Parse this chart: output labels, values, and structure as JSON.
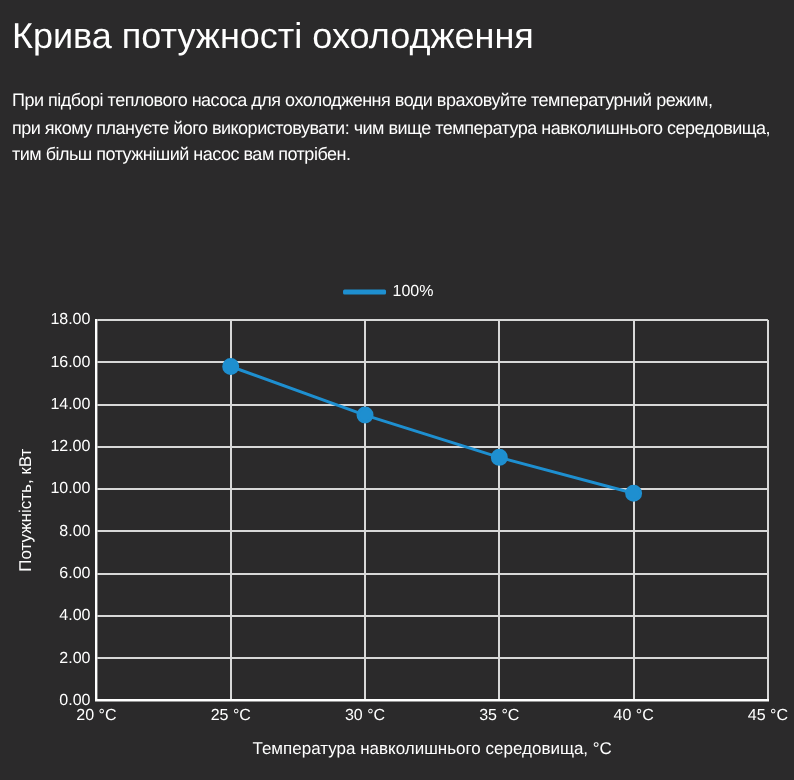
{
  "chart_data": {
    "type": "line",
    "title": "Крива потужності охолодження",
    "subtitle": "При підборі теплового насоса для охолодження води враховуйте температурний режим,\nпри якому плануєте його використовувати: чим вище температура навколишнього середовища,\nтим більш потужніший насос вам потрібен.",
    "xlabel": "Температура навколишнього середовища, °C",
    "ylabel": "Потужність, кВт",
    "x": [
      25,
      30,
      35,
      40
    ],
    "series": [
      {
        "name": "100%",
        "color": "#1e8fd0",
        "values": [
          15.8,
          13.5,
          11.5,
          9.8
        ]
      }
    ],
    "xlim": [
      20,
      45
    ],
    "xticks": [
      {
        "value": 20,
        "label": "20 °C"
      },
      {
        "value": 25,
        "label": "25 °C"
      },
      {
        "value": 30,
        "label": "30 °C"
      },
      {
        "value": 35,
        "label": "35 °C"
      },
      {
        "value": 40,
        "label": "40 °C"
      },
      {
        "value": 45,
        "label": "45 °C"
      }
    ],
    "ylim": [
      0,
      18
    ],
    "yticks": [
      {
        "value": 0,
        "label": "0.00"
      },
      {
        "value": 2,
        "label": "2.00"
      },
      {
        "value": 4,
        "label": "4.00"
      },
      {
        "value": 6,
        "label": "6.00"
      },
      {
        "value": 8,
        "label": "8.00"
      },
      {
        "value": 10,
        "label": "10.00"
      },
      {
        "value": 12,
        "label": "12.00"
      },
      {
        "value": 14,
        "label": "14.00"
      },
      {
        "value": 16,
        "label": "16.00"
      },
      {
        "value": 18,
        "label": "18.00"
      }
    ],
    "grid": true,
    "legend": "top",
    "marker": "circle",
    "line_style": "solid"
  }
}
